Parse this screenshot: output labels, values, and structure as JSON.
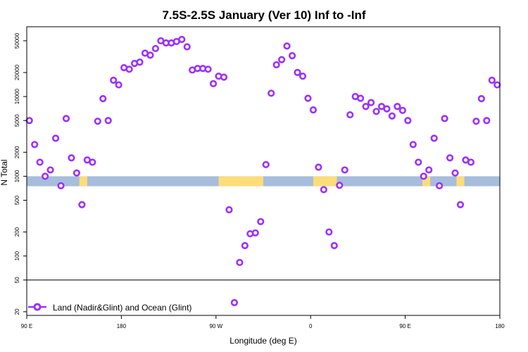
{
  "chart_data": {
    "type": "scatter",
    "title": "7.5S-2.5S January (Ver 10)   Inf to -Inf",
    "xlabel": "Longitude (deg E)",
    "ylabel": "N Total",
    "xlim": [
      0,
      360
    ],
    "xscale": "linear",
    "ylim": [
      18,
      75000
    ],
    "yscale": "log",
    "x_ticks": [
      {
        "value": 0,
        "label": "90 E"
      },
      {
        "value": 72,
        "label": "180"
      },
      {
        "value": 144,
        "label": "90 W"
      },
      {
        "value": 216,
        "label": "0"
      },
      {
        "value": 288,
        "label": "90 E"
      },
      {
        "value": 360,
        "label": "180"
      }
    ],
    "y_ticks": [
      {
        "value": 20,
        "label": "20"
      },
      {
        "value": 50,
        "label": "50"
      },
      {
        "value": 100,
        "label": "100"
      },
      {
        "value": 200,
        "label": "200"
      },
      {
        "value": 500,
        "label": "500"
      },
      {
        "value": 1000,
        "label": "1000"
      },
      {
        "value": 2000,
        "label": "2000"
      },
      {
        "value": 5000,
        "label": "5000"
      },
      {
        "value": 10000,
        "label": "10000"
      },
      {
        "value": 20000,
        "label": "20000"
      },
      {
        "value": 50000,
        "label": "50000"
      }
    ],
    "reference_line_y": 50,
    "map_strip": {
      "y_low": 750,
      "y_high": 1000,
      "ocean_color": "#a6bddb",
      "land_color": "#fddc7a",
      "land_ranges": [
        [
          40,
          46
        ],
        [
          146,
          180
        ],
        [
          218,
          236
        ],
        [
          301,
          307
        ],
        [
          327,
          333
        ]
      ]
    },
    "series": [
      {
        "name": "Land (Nadir&Glint) and Ocean (Glint)",
        "color": "#9b30ff",
        "marker": "open-circle",
        "x": [
          2,
          6,
          10,
          14,
          18,
          22,
          26,
          30,
          34,
          38,
          42,
          46,
          50,
          54,
          58,
          62,
          66,
          70,
          74,
          78,
          82,
          86,
          90,
          94,
          98,
          102,
          106,
          110,
          114,
          118,
          122,
          126,
          130,
          134,
          138,
          142,
          146,
          150,
          154,
          158,
          162,
          166,
          170,
          174,
          178,
          182,
          186,
          190,
          194,
          198,
          202,
          206,
          210,
          214,
          218,
          222,
          226,
          230,
          234,
          238,
          242,
          246,
          250,
          254,
          258,
          262,
          266,
          270,
          274,
          278,
          282,
          286,
          290,
          294,
          298,
          302,
          306,
          310,
          314,
          318,
          322,
          326,
          330,
          334,
          338,
          342,
          346,
          350,
          354,
          358
        ],
        "y": [
          5000,
          2500,
          1500,
          1000,
          1200,
          3000,
          760,
          5300,
          1700,
          1100,
          440,
          1600,
          1500,
          4900,
          9400,
          5000,
          16000,
          14000,
          23000,
          22000,
          26000,
          27000,
          35000,
          33000,
          40000,
          50000,
          47000,
          47000,
          49000,
          52000,
          42000,
          21500,
          22500,
          22500,
          22000,
          14500,
          18000,
          17500,
          380,
          26,
          83,
          135,
          190,
          195,
          270,
          1400,
          11000,
          25000,
          29000,
          43000,
          32500,
          20000,
          18000,
          9500,
          6800,
          1300,
          680,
          200,
          135,
          770,
          1200,
          5900,
          10000,
          9500,
          7500,
          8400,
          6500,
          7500,
          7000,
          5700,
          7500,
          6700,
          5000,
          2500,
          1500,
          1000,
          1200,
          3000,
          760,
          5300,
          1700,
          1100,
          440,
          1600,
          1500,
          4900,
          9400,
          5000,
          16000,
          14000
        ]
      }
    ],
    "legend": {
      "position": "bottom-left"
    }
  }
}
